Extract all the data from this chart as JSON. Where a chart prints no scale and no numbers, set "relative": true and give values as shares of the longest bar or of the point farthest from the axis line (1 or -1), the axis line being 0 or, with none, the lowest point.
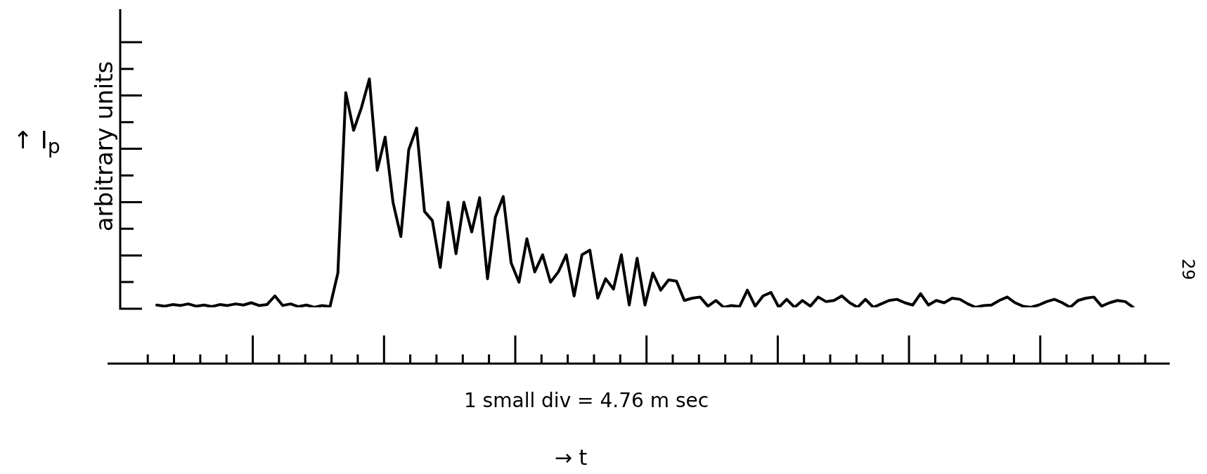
{
  "chart_data": {
    "type": "line",
    "relative": true,
    "ylabel": "arbitrary units",
    "xlabel": "1 small div = 4.76 m sec",
    "annotations": [
      "↑ I$_{p}$",
      "→ t",
      "29"
    ],
    "categories": [
      null,
      null,
      null,
      null,
      null,
      null,
      null,
      null,
      null,
      null,
      null,
      null,
      null,
      null,
      null,
      null,
      null,
      null,
      null,
      null,
      null,
      null,
      null,
      null,
      null,
      null,
      null,
      null,
      null,
      null,
      null,
      null,
      null,
      null,
      null,
      null,
      null,
      null,
      null,
      null,
      null,
      null,
      null,
      null,
      null,
      null,
      null,
      null,
      null,
      null,
      null,
      null,
      null,
      null,
      null,
      null,
      null,
      null,
      null,
      null,
      null,
      null,
      null,
      null,
      null,
      null,
      null,
      null,
      null,
      null,
      null,
      null,
      null,
      null,
      null,
      null,
      null,
      null,
      null,
      null,
      null,
      null,
      null,
      null,
      null,
      null,
      null,
      null,
      null,
      null,
      null,
      null,
      null,
      null,
      null,
      null,
      null,
      null,
      null,
      null,
      null,
      null,
      null,
      null,
      null,
      null,
      null,
      null,
      null,
      null,
      null,
      null,
      null,
      null,
      null,
      null,
      null,
      null,
      null,
      null,
      null,
      null,
      null,
      null,
      null
    ],
    "series": [
      {
        "color": "#000000",
        "values": [
          0.01,
          0.005,
          0.012,
          0.008,
          0.015,
          0.005,
          0.01,
          0.003,
          0.012,
          0.008,
          0.015,
          0.01,
          0.02,
          0.008,
          0.012,
          0.05,
          0.008,
          0.015,
          0.003,
          0.01,
          0,
          0.008,
          0.003,
          0.15,
          0.94,
          0.775,
          0.875,
          1.0,
          0.6,
          0.745,
          0.46,
          0.31,
          0.69,
          0.785,
          0.42,
          0.38,
          0.175,
          0.46,
          0.235,
          0.46,
          0.33,
          0.48,
          0.125,
          0.395,
          0.485,
          0.195,
          0.11,
          0.3,
          0.155,
          0.23,
          0.11,
          0.155,
          0.23,
          0.05,
          0.23,
          0.25,
          0.04,
          0.125,
          0.08,
          0.23,
          0.01,
          0.215,
          0.01,
          0.15,
          0.075,
          0.12,
          0.115,
          0.03,
          0.04,
          0.045,
          0.005,
          0.03,
          0,
          0.008,
          0.003,
          0.075,
          0.005,
          0.05,
          0.065,
          0,
          0.035,
          0,
          0.03,
          0.005,
          0.045,
          0.025,
          0.03,
          0.05,
          0.02,
          0,
          0.035,
          0,
          0.015,
          0.03,
          0.035,
          0.02,
          0.01,
          0.06,
          0.01,
          0.03,
          0.02,
          0.04,
          0.035,
          0.015,
          0,
          0.008,
          0.01,
          0.03,
          0.045,
          0.02,
          0.005,
          0,
          0.01,
          0.025,
          0.035,
          0.02,
          0,
          0.03,
          0.04,
          0.045,
          0.005,
          0.02,
          0.03,
          0.025,
          0
        ]
      }
    ],
    "legend": false,
    "marker": "none"
  }
}
